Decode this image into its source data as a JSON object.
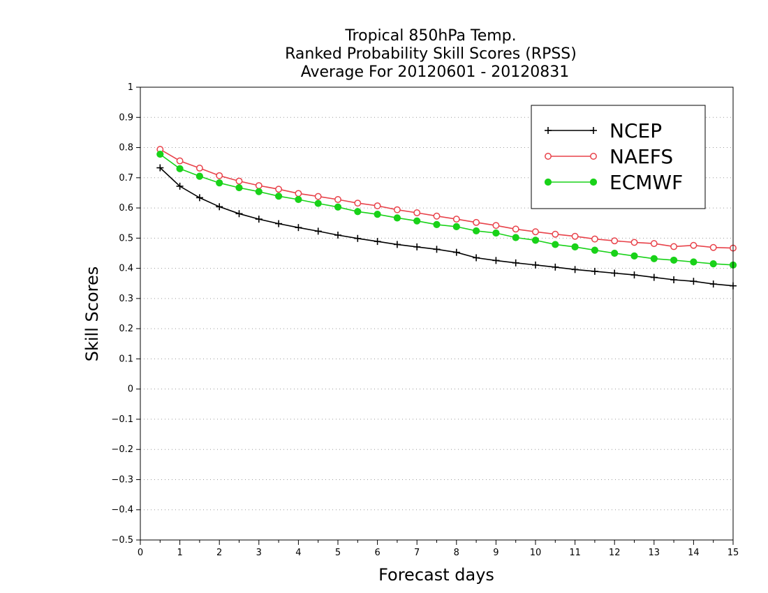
{
  "chart_data": {
    "type": "line",
    "title": [
      "Tropical 850hPa Temp.",
      "Ranked Probability Skill Scores (RPSS)",
      "Average For 20120601 - 20120831"
    ],
    "xlabel": "Forecast days",
    "ylabel": "Skill Scores",
    "xlim": [
      0,
      15
    ],
    "ylim": [
      -0.5,
      1
    ],
    "xticks": [
      0,
      1,
      2,
      3,
      4,
      5,
      6,
      7,
      8,
      9,
      10,
      11,
      12,
      13,
      14,
      15
    ],
    "xtick_labels": [
      "0",
      "1",
      "2",
      "3",
      "4",
      "5",
      "6",
      "7",
      "8",
      "9",
      "10",
      "11",
      "12",
      "13",
      "14",
      "15"
    ],
    "yticks": [
      -0.5,
      -0.4,
      -0.3,
      -0.2,
      -0.1,
      0,
      0.1,
      0.2,
      0.3,
      0.4,
      0.5,
      0.6,
      0.7,
      0.8,
      0.9,
      1
    ],
    "ytick_labels": [
      "−0.5",
      "−0.4",
      "−0.3",
      "−0.2",
      "−0.1",
      "0",
      "0.1",
      "0.2",
      "0.3",
      "0.4",
      "0.5",
      "0.6",
      "0.7",
      "0.8",
      "0.9",
      "1"
    ],
    "grid": "horizontal dotted",
    "legend_position": "top-right",
    "x": [
      0.5,
      1,
      1.5,
      2,
      2.5,
      3,
      3.5,
      4,
      4.5,
      5,
      5.5,
      6,
      6.5,
      7,
      7.5,
      8,
      8.5,
      9,
      9.5,
      10,
      10.5,
      11,
      11.5,
      12,
      12.5,
      13,
      13.5,
      14,
      14.5,
      15
    ],
    "series": [
      {
        "name": "NCEP",
        "color": "#000000",
        "marker": "plus",
        "values": [
          0.733,
          0.672,
          0.634,
          0.604,
          0.581,
          0.563,
          0.548,
          0.535,
          0.523,
          0.51,
          0.499,
          0.489,
          0.479,
          0.471,
          0.463,
          0.453,
          0.435,
          0.426,
          0.418,
          0.411,
          0.404,
          0.396,
          0.39,
          0.384,
          0.378,
          0.37,
          0.362,
          0.357,
          0.348,
          0.342
        ]
      },
      {
        "name": "NAEFS",
        "color": "#e8424a",
        "marker": "open-circle",
        "values": [
          0.794,
          0.756,
          0.732,
          0.707,
          0.689,
          0.674,
          0.662,
          0.648,
          0.638,
          0.628,
          0.616,
          0.607,
          0.594,
          0.584,
          0.573,
          0.563,
          0.552,
          0.542,
          0.53,
          0.521,
          0.513,
          0.506,
          0.497,
          0.491,
          0.486,
          0.482,
          0.472,
          0.476,
          0.469,
          0.467
        ]
      },
      {
        "name": "ECMWF",
        "color": "#19d219",
        "marker": "filled-circle",
        "values": [
          0.778,
          0.73,
          0.705,
          0.683,
          0.667,
          0.654,
          0.639,
          0.628,
          0.615,
          0.603,
          0.588,
          0.579,
          0.567,
          0.557,
          0.545,
          0.538,
          0.524,
          0.517,
          0.502,
          0.493,
          0.479,
          0.471,
          0.46,
          0.45,
          0.441,
          0.432,
          0.427,
          0.421,
          0.415,
          0.411
        ]
      }
    ]
  }
}
